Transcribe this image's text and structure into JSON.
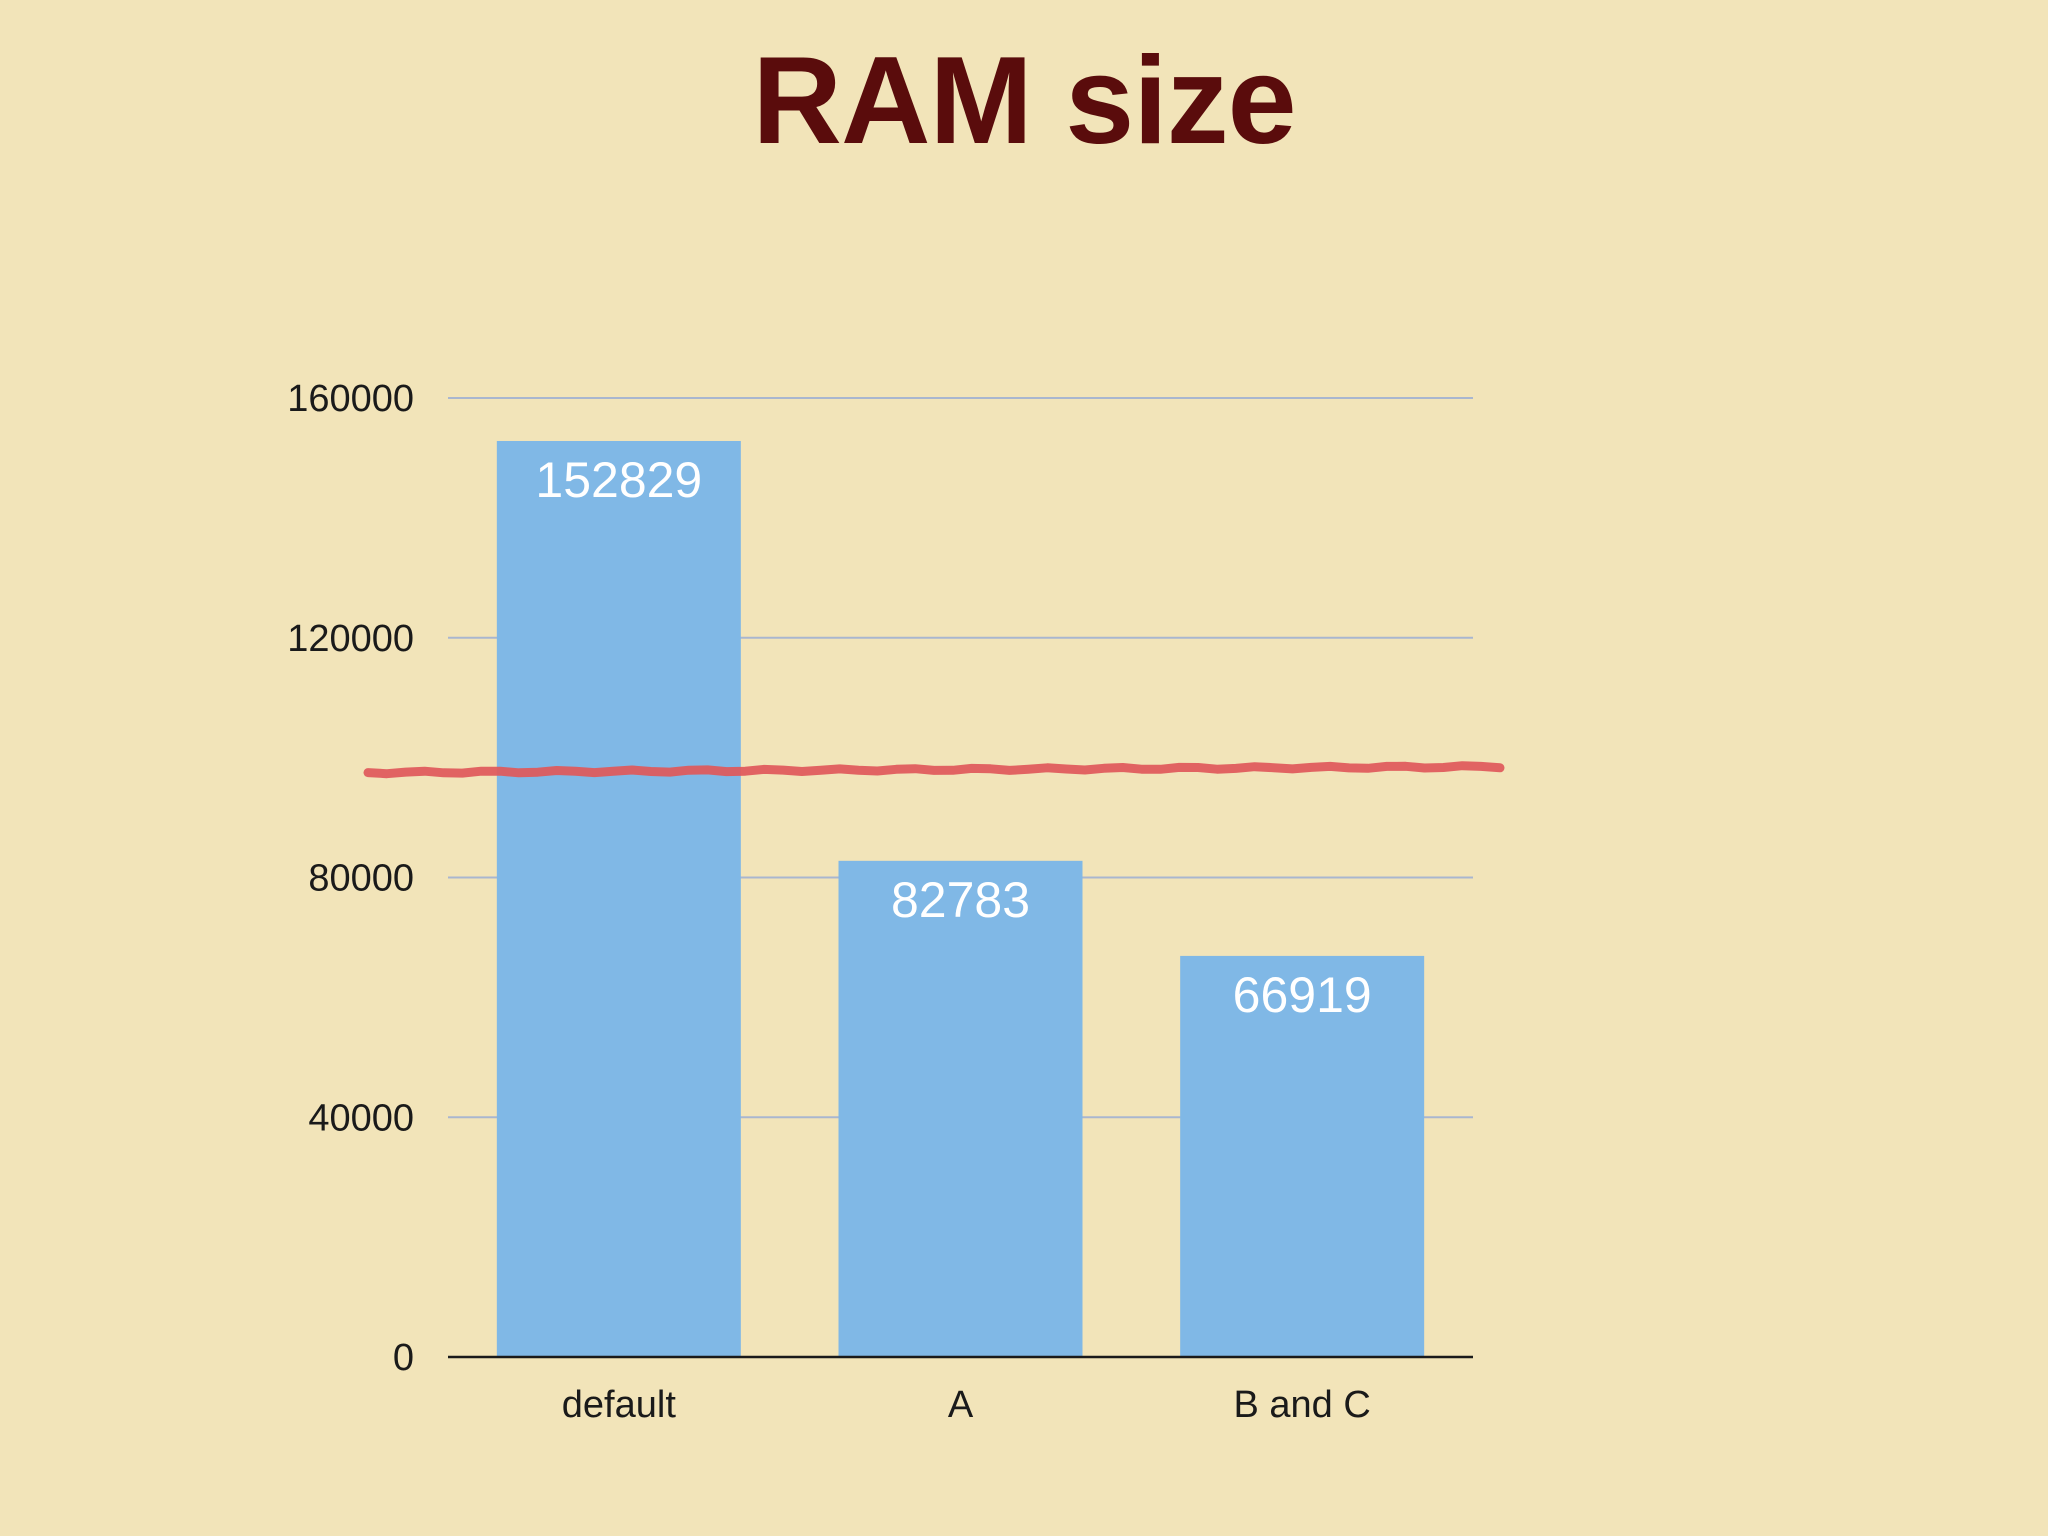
{
  "title": "RAM size",
  "colors": {
    "background": "#f2e4b9",
    "title": "#5a0c0c",
    "bar": "#80b8e6",
    "gridline": "#a9b6cf",
    "axis": "#1a1a1a",
    "threshold": "#e0585a",
    "data_label": "#ffffff"
  },
  "chart_data": {
    "type": "bar",
    "title": "RAM size",
    "xlabel": "",
    "ylabel": "",
    "categories": [
      "default",
      "A",
      "B and C"
    ],
    "values": [
      152829,
      82783,
      66919
    ],
    "data_labels": [
      "152829",
      "82783",
      "66919"
    ],
    "ylim": [
      0,
      160000
    ],
    "yticks": [
      0,
      40000,
      80000,
      120000,
      160000
    ],
    "ytick_labels": [
      "0",
      "40000",
      "80000",
      "120000",
      "160000"
    ],
    "grid": true,
    "legend": "none",
    "threshold_line": {
      "y": 98000,
      "style": "hand-drawn red line"
    }
  }
}
